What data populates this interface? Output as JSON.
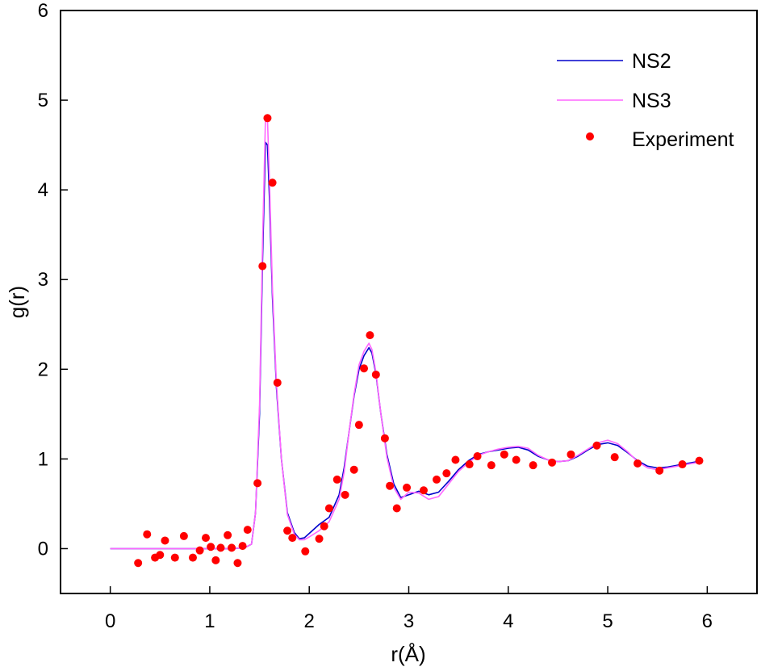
{
  "chart_data": {
    "type": "line",
    "title": "",
    "xlabel": "r(Å)",
    "ylabel": "g(r)",
    "xlim": [
      -0.5,
      6.5
    ],
    "ylim": [
      -0.5,
      6
    ],
    "xticks": [
      0,
      1,
      2,
      3,
      4,
      5,
      6
    ],
    "yticks": [
      0,
      1,
      2,
      3,
      4,
      5,
      6
    ],
    "grid": false,
    "legend": "top-right",
    "series": [
      {
        "name": "NS2",
        "kind": "line",
        "color": "#0000cc",
        "x": [
          0.0,
          0.2,
          0.4,
          0.6,
          0.8,
          1.0,
          1.2,
          1.35,
          1.42,
          1.46,
          1.5,
          1.53,
          1.56,
          1.58,
          1.6,
          1.63,
          1.67,
          1.72,
          1.78,
          1.85,
          1.9,
          1.95,
          2.0,
          2.1,
          2.2,
          2.3,
          2.35,
          2.4,
          2.45,
          2.5,
          2.55,
          2.6,
          2.63,
          2.67,
          2.72,
          2.78,
          2.85,
          2.92,
          3.0,
          3.1,
          3.2,
          3.3,
          3.4,
          3.5,
          3.6,
          3.7,
          3.8,
          3.9,
          4.0,
          4.1,
          4.2,
          4.3,
          4.4,
          4.5,
          4.6,
          4.7,
          4.8,
          4.9,
          5.0,
          5.1,
          5.2,
          5.3,
          5.4,
          5.5,
          5.6,
          5.7,
          5.8,
          5.9
        ],
        "values": [
          0.0,
          0.0,
          0.0,
          0.0,
          0.0,
          0.0,
          0.0,
          0.01,
          0.05,
          0.4,
          1.5,
          3.2,
          4.53,
          4.5,
          3.9,
          2.8,
          1.8,
          1.0,
          0.4,
          0.18,
          0.11,
          0.12,
          0.17,
          0.27,
          0.35,
          0.6,
          0.9,
          1.3,
          1.7,
          2.0,
          2.15,
          2.24,
          2.18,
          1.95,
          1.5,
          1.05,
          0.72,
          0.57,
          0.6,
          0.64,
          0.6,
          0.63,
          0.75,
          0.88,
          0.98,
          1.05,
          1.08,
          1.1,
          1.12,
          1.13,
          1.1,
          1.03,
          0.99,
          0.97,
          0.98,
          1.03,
          1.1,
          1.16,
          1.18,
          1.15,
          1.07,
          0.98,
          0.92,
          0.9,
          0.91,
          0.93,
          0.95,
          0.97
        ]
      },
      {
        "name": "NS3",
        "kind": "line",
        "color": "#ff66ff",
        "x": [
          0.0,
          0.2,
          0.4,
          0.6,
          0.8,
          1.0,
          1.2,
          1.35,
          1.42,
          1.46,
          1.5,
          1.53,
          1.56,
          1.58,
          1.6,
          1.63,
          1.67,
          1.72,
          1.78,
          1.85,
          1.9,
          1.95,
          2.0,
          2.1,
          2.2,
          2.3,
          2.35,
          2.4,
          2.45,
          2.5,
          2.55,
          2.6,
          2.63,
          2.67,
          2.72,
          2.78,
          2.85,
          2.92,
          3.0,
          3.1,
          3.2,
          3.3,
          3.4,
          3.5,
          3.6,
          3.7,
          3.8,
          3.9,
          4.0,
          4.1,
          4.2,
          4.3,
          4.4,
          4.5,
          4.6,
          4.7,
          4.8,
          4.9,
          5.0,
          5.1,
          5.2,
          5.3,
          5.4,
          5.5,
          5.6,
          5.7,
          5.8,
          5.9
        ],
        "values": [
          0.0,
          0.0,
          0.0,
          0.0,
          0.0,
          0.0,
          0.0,
          0.01,
          0.05,
          0.4,
          1.6,
          3.4,
          4.82,
          4.8,
          4.1,
          2.9,
          1.85,
          1.0,
          0.38,
          0.16,
          0.1,
          0.1,
          0.13,
          0.2,
          0.3,
          0.55,
          0.85,
          1.3,
          1.72,
          2.05,
          2.2,
          2.29,
          2.22,
          1.97,
          1.5,
          1.02,
          0.68,
          0.55,
          0.63,
          0.62,
          0.55,
          0.58,
          0.72,
          0.86,
          0.96,
          1.04,
          1.08,
          1.11,
          1.13,
          1.14,
          1.12,
          1.04,
          0.99,
          0.97,
          0.98,
          1.04,
          1.11,
          1.18,
          1.21,
          1.17,
          1.08,
          0.97,
          0.9,
          0.88,
          0.9,
          0.92,
          0.94,
          0.96
        ]
      },
      {
        "name": "Experiment",
        "kind": "scatter",
        "color": "#ff0000",
        "x": [
          0.28,
          0.37,
          0.45,
          0.5,
          0.55,
          0.65,
          0.74,
          0.83,
          0.9,
          0.96,
          1.01,
          1.06,
          1.11,
          1.18,
          1.22,
          1.28,
          1.33,
          1.38,
          1.48,
          1.53,
          1.58,
          1.63,
          1.68,
          1.78,
          1.83,
          1.96,
          2.1,
          2.15,
          2.2,
          2.28,
          2.36,
          2.45,
          2.5,
          2.55,
          2.61,
          2.67,
          2.76,
          2.81,
          2.88,
          2.98,
          3.15,
          3.28,
          3.38,
          3.47,
          3.61,
          3.69,
          3.83,
          3.96,
          4.08,
          4.25,
          4.44,
          4.63,
          4.89,
          5.07,
          5.3,
          5.52,
          5.75,
          5.92
        ],
        "values": [
          -0.16,
          0.16,
          -0.1,
          -0.07,
          0.09,
          -0.1,
          0.14,
          -0.1,
          -0.02,
          0.12,
          0.02,
          -0.13,
          0.01,
          0.15,
          0.01,
          -0.16,
          0.03,
          0.21,
          0.73,
          3.15,
          4.8,
          4.08,
          1.85,
          0.2,
          0.12,
          -0.03,
          0.11,
          0.25,
          0.45,
          0.77,
          0.6,
          0.88,
          1.38,
          2.01,
          2.38,
          1.94,
          1.23,
          0.7,
          0.45,
          0.68,
          0.65,
          0.77,
          0.84,
          0.99,
          0.94,
          1.03,
          0.93,
          1.05,
          0.99,
          0.93,
          0.96,
          1.05,
          1.15,
          1.02,
          0.95,
          0.87,
          0.94,
          0.98
        ]
      }
    ]
  }
}
